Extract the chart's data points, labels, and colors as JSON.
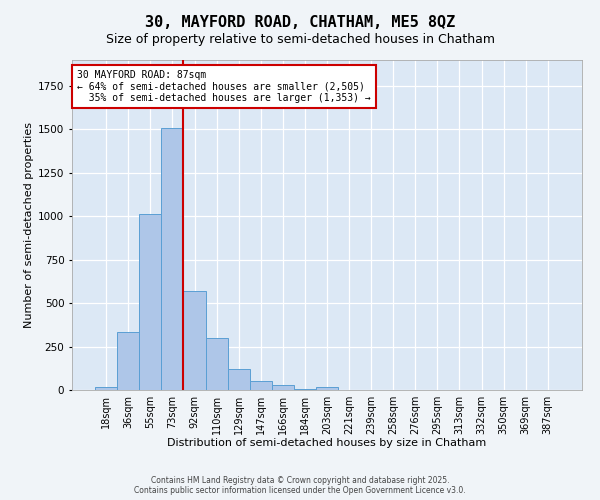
{
  "title_line1": "30, MAYFORD ROAD, CHATHAM, ME5 8QZ",
  "title_line2": "Size of property relative to semi-detached houses in Chatham",
  "xlabel": "Distribution of semi-detached houses by size in Chatham",
  "ylabel": "Number of semi-detached properties",
  "bar_labels": [
    "18sqm",
    "36sqm",
    "55sqm",
    "73sqm",
    "92sqm",
    "110sqm",
    "129sqm",
    "147sqm",
    "166sqm",
    "184sqm",
    "203sqm",
    "221sqm",
    "239sqm",
    "258sqm",
    "276sqm",
    "295sqm",
    "313sqm",
    "332sqm",
    "350sqm",
    "369sqm",
    "387sqm"
  ],
  "bar_values": [
    15,
    335,
    1015,
    1510,
    570,
    300,
    120,
    50,
    30,
    5,
    15,
    0,
    0,
    0,
    0,
    0,
    0,
    0,
    0,
    0,
    0
  ],
  "bar_color": "#aec6e8",
  "bar_edge_color": "#5a9fd4",
  "vline_position": 3.5,
  "vline_color": "#cc0000",
  "annotation_text": "30 MAYFORD ROAD: 87sqm\n← 64% of semi-detached houses are smaller (2,505)\n  35% of semi-detached houses are larger (1,353) →",
  "annotation_box_color": "#ffffff",
  "annotation_box_edge": "#cc0000",
  "ylim": [
    0,
    1900
  ],
  "background_color": "#dce8f5",
  "grid_color": "#ffffff",
  "footer_text": "Contains HM Land Registry data © Crown copyright and database right 2025.\nContains public sector information licensed under the Open Government Licence v3.0.",
  "title_fontsize": 11,
  "subtitle_fontsize": 9,
  "tick_fontsize": 7,
  "ylabel_fontsize": 8,
  "xlabel_fontsize": 8,
  "annotation_fontsize": 7,
  "footer_fontsize": 5.5
}
